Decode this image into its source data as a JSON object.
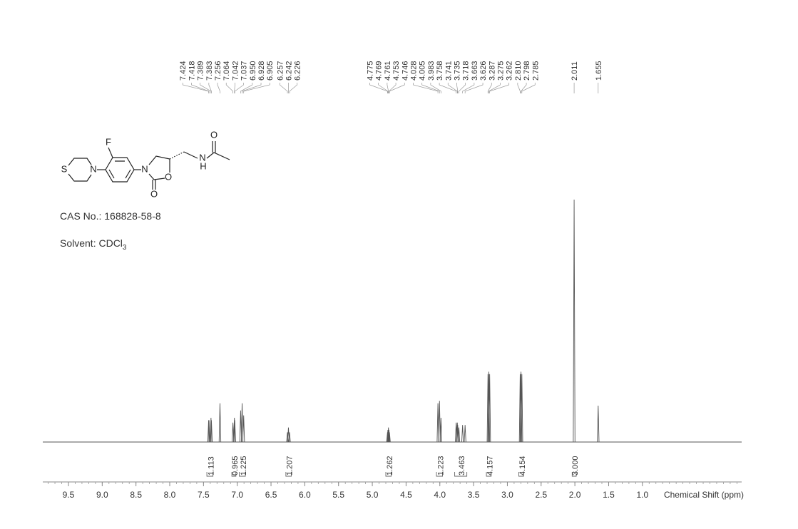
{
  "chart_data": {
    "type": "nmr",
    "xlabel": "Chemical Shift (ppm)",
    "xlim": [
      9.88,
      -0.47
    ],
    "xticks": [
      9.5,
      {
        "value": 9,
        "label": "9.0"
      },
      8.5,
      {
        "value": 8,
        "label": "8.0"
      },
      7.5,
      {
        "value": 7,
        "label": "7.0"
      },
      6.5,
      {
        "value": 6,
        "label": "6.0"
      },
      5.5,
      {
        "value": 5,
        "label": "5.0"
      },
      4.5,
      {
        "value": 4,
        "label": "4.0"
      },
      3.5,
      {
        "value": 3,
        "label": "3.0"
      },
      2.5,
      {
        "value": 2,
        "label": "2.0"
      },
      1.5,
      {
        "value": 1,
        "label": "1.0"
      }
    ],
    "xminor": 0.1,
    "ylim": [
      0,
      1
    ],
    "color": "#555555",
    "peaks": [
      {
        "shift": 7.424,
        "height": 0.09
      },
      {
        "shift": 7.418,
        "height": 0.09
      },
      {
        "shift": 7.389,
        "height": 0.1
      },
      {
        "shift": 7.383,
        "height": 0.09
      },
      {
        "shift": 7.256,
        "height": 0.16
      },
      {
        "shift": 7.064,
        "height": 0.08
      },
      {
        "shift": 7.042,
        "height": 0.1
      },
      {
        "shift": 7.037,
        "height": 0.09
      },
      {
        "shift": {
          "value": 6.95,
          "label": "6.950"
        },
        "height": 0.13
      },
      {
        "shift": 6.928,
        "height": 0.16
      },
      {
        "shift": 6.905,
        "height": 0.11
      },
      {
        "shift": 6.257,
        "height": 0.04
      },
      {
        "shift": 6.242,
        "height": 0.06
      },
      {
        "shift": 6.226,
        "height": 0.04
      },
      {
        "shift": 4.775,
        "height": 0.04
      },
      {
        "shift": 4.769,
        "height": 0.05
      },
      {
        "shift": 4.761,
        "height": 0.06
      },
      {
        "shift": 4.753,
        "height": 0.05
      },
      {
        "shift": 4.746,
        "height": 0.04
      },
      {
        "shift": 4.028,
        "height": 0.16
      },
      {
        "shift": 4.005,
        "height": 0.17
      },
      {
        "shift": 3.983,
        "height": 0.1
      },
      {
        "shift": 3.758,
        "height": 0.08
      },
      {
        "shift": 3.741,
        "height": 0.08
      },
      {
        "shift": 3.735,
        "height": 0.07
      },
      {
        "shift": 3.718,
        "height": 0.06
      },
      {
        "shift": 3.663,
        "height": 0.07
      },
      {
        "shift": 3.626,
        "height": 0.07
      },
      {
        "shift": 3.287,
        "height": 0.28
      },
      {
        "shift": 3.275,
        "height": 0.29
      },
      {
        "shift": 3.262,
        "height": 0.28
      },
      {
        "shift": {
          "value": 2.81,
          "label": "2.810"
        },
        "height": 0.28
      },
      {
        "shift": 2.798,
        "height": 0.29
      },
      {
        "shift": 2.785,
        "height": 0.28
      },
      {
        "shift": 2.011,
        "height": 1.0
      },
      {
        "shift": 1.655,
        "height": 0.15
      }
    ],
    "integrals": [
      {
        "value": 1.113,
        "range": [
          7.45,
          7.36
        ]
      },
      {
        "value": 0.965,
        "range": [
          7.08,
          7.02
        ]
      },
      {
        "value": 1.225,
        "range": [
          6.97,
          6.88
        ]
      },
      {
        "value": 1.207,
        "range": [
          6.28,
          6.2
        ]
      },
      {
        "value": 1.262,
        "range": [
          4.8,
          4.72
        ]
      },
      {
        "value": 1.223,
        "range": [
          4.05,
          3.96
        ]
      },
      {
        "value": 3.463,
        "range": [
          3.78,
          3.6
        ]
      },
      {
        "value": 4.157,
        "range": [
          3.31,
          3.24
        ]
      },
      {
        "value": 4.154,
        "range": [
          2.83,
          2.76
        ]
      },
      {
        "value": {
          "value": 3,
          "label": "3.000"
        },
        "range": [
          2.04,
          1.98
        ]
      }
    ]
  },
  "compound": {
    "atoms": [
      "F",
      "S",
      "N",
      "N",
      "O",
      "O",
      "N",
      "H",
      "O"
    ],
    "cas": "CAS No.: 168828-58-8",
    "solvent": "Solvent: CDCl",
    "solvent_sub": "3"
  }
}
